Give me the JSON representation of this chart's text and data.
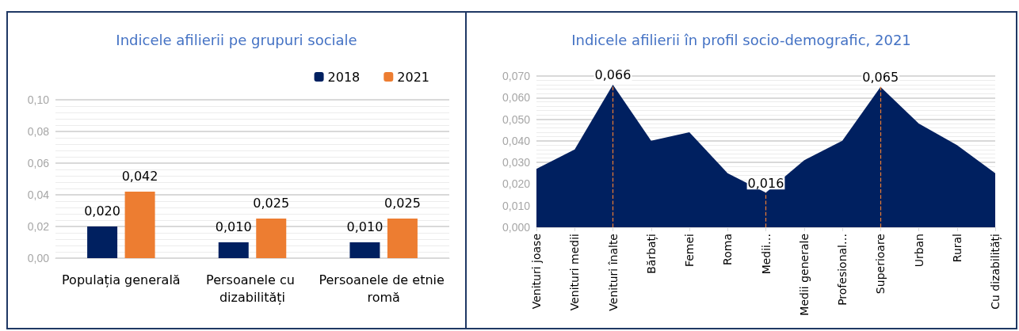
{
  "chart_data": [
    {
      "type": "bar",
      "title": "Indicele afilierii pe grupuri sociale",
      "categories": [
        "Populația generală",
        "Persoanele cu dizabilități",
        "Persoanele de etnie romă"
      ],
      "series": [
        {
          "name": "2018",
          "color": "#002060",
          "values": [
            0.02,
            0.01,
            0.01
          ],
          "value_labels": [
            "0,020",
            "0,010",
            "0,010"
          ]
        },
        {
          "name": "2021",
          "color": "#ed7d31",
          "values": [
            0.042,
            0.025,
            0.025
          ],
          "value_labels": [
            "0,042",
            "0,025",
            "0,025"
          ]
        }
      ],
      "ylim": [
        0,
        0.1
      ],
      "yticks": [
        {
          "value": 0,
          "label": "0,00"
        },
        {
          "value": 0.02,
          "label": "0,02"
        },
        {
          "value": 0.04,
          "label": "0,04"
        },
        {
          "value": 0.06,
          "label": "0,06"
        },
        {
          "value": 0.08,
          "label": "0,08"
        },
        {
          "value": 0.1,
          "label": "0,10"
        }
      ],
      "grid": "y",
      "legend": "top right"
    },
    {
      "type": "area",
      "title": "Indicele afilierii în profil socio-demografic, 2021",
      "categories": [
        "Venituri joase",
        "Venituri medii",
        "Venituri înalte",
        "Bărbați",
        "Femei",
        "Roma",
        "Medii…",
        "Medii generale",
        "Profesional…",
        "Superioare",
        "Urban",
        "Rural",
        "Cu dizabilități"
      ],
      "series": [
        {
          "color": "#002060",
          "values": [
            0.027,
            0.036,
            0.066,
            0.04,
            0.044,
            0.025,
            0.016,
            0.031,
            0.04,
            0.065,
            0.048,
            0.038,
            0.025
          ],
          "value_labels": [
            null,
            null,
            "0,066",
            null,
            null,
            null,
            "0,016",
            null,
            null,
            "0,065",
            null,
            null,
            null
          ]
        }
      ],
      "ylim": [
        0,
        0.07
      ],
      "yticks": [
        {
          "value": 0,
          "label": "0,000"
        },
        {
          "value": 0.01,
          "label": "0,010"
        },
        {
          "value": 0.02,
          "label": "0,020"
        },
        {
          "value": 0.03,
          "label": "0,030"
        },
        {
          "value": 0.04,
          "label": "0,040"
        },
        {
          "value": 0.05,
          "label": "0,050"
        },
        {
          "value": 0.06,
          "label": "0,060"
        },
        {
          "value": 0.07,
          "label": "0,070"
        }
      ],
      "ref_lines": [
        {
          "axis": "x",
          "value": "Venituri înalte",
          "color": "#ed7d31",
          "line_style": "dashed"
        },
        {
          "axis": "x",
          "value": "Medii…",
          "color": "#ed7d31",
          "line_style": "dashed"
        },
        {
          "axis": "x",
          "value": "Superioare",
          "color": "#ed7d31",
          "line_style": "dashed"
        }
      ],
      "grid": "y",
      "legend": false
    }
  ]
}
